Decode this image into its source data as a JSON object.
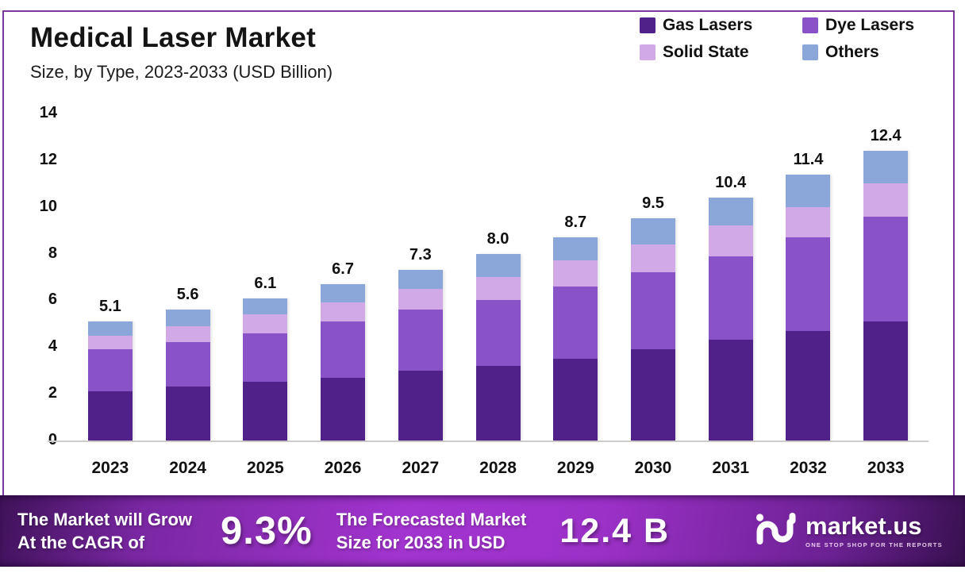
{
  "title": "Medical Laser Market",
  "subtitle": "Size, by Type, 2023-2033 (USD Billion)",
  "colors": {
    "gas_lasers": "#4f2189",
    "dye_lasers": "#8a52c7",
    "solid_state": "#d0a9e6",
    "others": "#8ba7d9",
    "card_border": "#7b3a9b",
    "banner_center": "#a234cf",
    "banner_edge": "#3f1259",
    "label_text": "#111111"
  },
  "chart_data": {
    "type": "bar",
    "stacked": true,
    "title": "Medical Laser Market Size, by Type, 2023-2033 (USD Billion)",
    "categories": [
      "2023",
      "2024",
      "2025",
      "2026",
      "2027",
      "2028",
      "2029",
      "2030",
      "2031",
      "2032",
      "2033"
    ],
    "series": [
      {
        "name": "Gas Lasers",
        "color": "#4f2189",
        "values": [
          2.1,
          2.3,
          2.5,
          2.7,
          3.0,
          3.2,
          3.5,
          3.9,
          4.3,
          4.7,
          5.1
        ]
      },
      {
        "name": "Dye Lasers",
        "color": "#8a52c7",
        "values": [
          1.8,
          1.9,
          2.1,
          2.4,
          2.6,
          2.8,
          3.1,
          3.3,
          3.6,
          4.0,
          4.5
        ]
      },
      {
        "name": "Solid State",
        "color": "#d0a9e6",
        "values": [
          0.6,
          0.7,
          0.8,
          0.8,
          0.9,
          1.0,
          1.1,
          1.2,
          1.3,
          1.3,
          1.4
        ]
      },
      {
        "name": "Others",
        "color": "#8ba7d9",
        "values": [
          0.6,
          0.7,
          0.7,
          0.8,
          0.8,
          1.0,
          1.0,
          1.1,
          1.2,
          1.4,
          1.4
        ]
      }
    ],
    "totals": [
      "5.1",
      "5.6",
      "6.1",
      "6.7",
      "7.3",
      "8.0",
      "8.7",
      "9.5",
      "10.4",
      "11.4",
      "12.4"
    ],
    "ylim": [
      0,
      14
    ],
    "yticks": [
      0,
      2,
      4,
      6,
      8,
      10,
      12,
      14
    ],
    "grid": false,
    "legend_position": "top-right"
  },
  "legend": [
    {
      "label": "Gas Lasers",
      "color": "#4f2189"
    },
    {
      "label": "Dye Lasers",
      "color": "#8a52c7"
    },
    {
      "label": "Solid State",
      "color": "#d0a9e6"
    },
    {
      "label": "Others",
      "color": "#8ba7d9"
    }
  ],
  "banner": {
    "cagr_label_line1": "The Market will Grow",
    "cagr_label_line2": "At the CAGR of",
    "cagr_value": "9.3%",
    "forecast_label_line1": "The Forecasted Market",
    "forecast_label_line2": "Size for 2033 in USD",
    "forecast_value": "12.4 B",
    "brand_name": "market.us",
    "brand_tagline": "ONE STOP SHOP FOR THE REPORTS"
  }
}
